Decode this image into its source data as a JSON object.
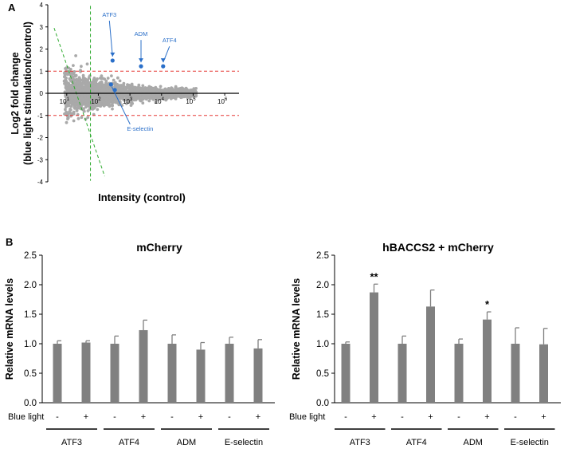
{
  "figure": {
    "panel_a_label": "A",
    "panel_b_label": "B",
    "mark_double_star": "**",
    "mark_single_star": "*",
    "minus_sign": "-",
    "plus_sign": "+"
  },
  "colors": {
    "bar": "#808080",
    "scatter": "#a9a9a9",
    "highlight": "#2a6fc9",
    "threshold_line": "#e53935",
    "trend_line": "#2eaa2e"
  },
  "chart_data": [
    {
      "type": "scatter",
      "title": "",
      "xlabel": "Intensity (control)",
      "ylabel_line1": "Log2 fold change",
      "ylabel_line2": "(blue light stimulation/control)",
      "x_scale": "log10",
      "xlim_log10": [
        0.4,
        6.4
      ],
      "ylim": [
        -4,
        4
      ],
      "y_ticks": [
        "4",
        "3",
        "2",
        "1",
        "0",
        "-1",
        "-2",
        "-3",
        "-4"
      ],
      "x_tick_base": "10",
      "x_tick_exponents": [
        "1",
        "2",
        "3",
        "4",
        "5",
        "6"
      ],
      "threshold_y": [
        1,
        -1
      ],
      "threshold_style": "red dashed",
      "vertical_guide_log10": 1.75,
      "trend_guides": [
        {
          "from": [
            0.6,
            2.95
          ],
          "to": [
            2.2,
            -3.75
          ]
        }
      ],
      "highlighted_genes": [
        {
          "name": "ATF3",
          "log10_intensity": 2.45,
          "log2_fc": 1.48,
          "label": "ATF3"
        },
        {
          "name": "ADM",
          "log10_intensity": 3.35,
          "log2_fc": 1.22,
          "label": "ADM"
        },
        {
          "name": "ATF4",
          "log10_intensity": 4.05,
          "log2_fc": 1.22,
          "label": "ATF4"
        },
        {
          "name": "E-selectin",
          "log10_intensity": 2.4,
          "log2_fc": 0.4,
          "label": "E-selectin"
        },
        {
          "name": "E-selectin-2",
          "log10_intensity": 2.52,
          "log2_fc": 0.15,
          "label": ""
        }
      ],
      "scatter_points": "cloud of gray gene points centered near zero"
    },
    {
      "type": "bar",
      "title": "mCherry",
      "ylabel": "Relative mRNA levels",
      "ylim": [
        0,
        2.5
      ],
      "y_ticks": [
        "0.0",
        "0.5",
        "1.0",
        "1.5",
        "2.0",
        "2.5"
      ],
      "condition_label": "Blue light",
      "genes": [
        "ATF3",
        "ATF4",
        "ADM",
        "E-selectin"
      ],
      "conditions": [
        "-",
        "+"
      ],
      "values": [
        1.0,
        1.02,
        1.0,
        1.23,
        1.0,
        0.9,
        1.0,
        0.92
      ],
      "errors": [
        0.05,
        0.03,
        0.13,
        0.17,
        0.15,
        0.12,
        0.11,
        0.15
      ],
      "significance": [
        "",
        "",
        "",
        "",
        "",
        "",
        "",
        ""
      ]
    },
    {
      "type": "bar",
      "title": "hBACCS2 + mCherry",
      "ylabel": "Relative mRNA levels",
      "ylim": [
        0,
        2.5
      ],
      "y_ticks": [
        "0.0",
        "0.5",
        "1.0",
        "1.5",
        "2.0",
        "2.5"
      ],
      "condition_label": "Blue light",
      "genes": [
        "ATF3",
        "ATF4",
        "ADM",
        "E-selectin"
      ],
      "conditions": [
        "-",
        "+"
      ],
      "values": [
        1.0,
        1.87,
        1.0,
        1.63,
        1.0,
        1.41,
        1.0,
        0.99
      ],
      "errors": [
        0.03,
        0.14,
        0.13,
        0.28,
        0.08,
        0.13,
        0.27,
        0.27
      ],
      "significance": [
        "",
        "**",
        "",
        "",
        "",
        "*",
        "",
        ""
      ]
    }
  ]
}
